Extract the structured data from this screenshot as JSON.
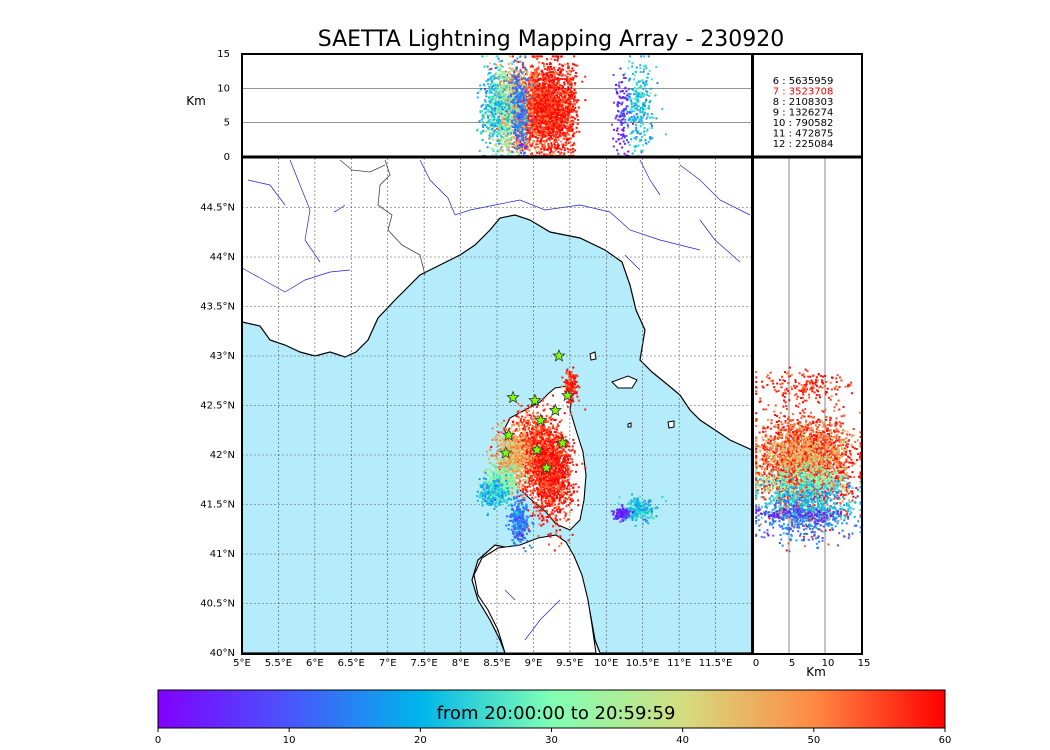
{
  "chart_data": {
    "type": "scatter",
    "title": "SAETTA Lightning Mapping Array - 230920",
    "colorbar": {
      "label": "from 20:00:00 to 20:59:59",
      "range": [
        0,
        60
      ],
      "ticks": [
        "0",
        "10",
        "20",
        "30",
        "40",
        "50",
        "60"
      ],
      "colormap": "rainbow"
    },
    "map_panel": {
      "lon_range": [
        5.0,
        12.0
      ],
      "lat_range": [
        40.0,
        45.0
      ],
      "lon_ticks": [
        "5°E",
        "5.5°E",
        "6°E",
        "6.5°E",
        "7°E",
        "7.5°E",
        "8°E",
        "8.5°E",
        "9°E",
        "9.5°E",
        "10°E",
        "10.5°E",
        "11°E",
        "11.5°E"
      ],
      "lat_ticks": [
        "40°N",
        "40.5°N",
        "41°N",
        "41.5°N",
        "42°N",
        "42.5°N",
        "43°N",
        "43.5°N",
        "44°N",
        "44.5°N"
      ],
      "grid": true,
      "sea_color": "#b5ecfb",
      "stations": [
        [
          9.35,
          43.0
        ],
        [
          8.72,
          42.58
        ],
        [
          9.02,
          42.55
        ],
        [
          9.47,
          42.6
        ],
        [
          9.1,
          42.35
        ],
        [
          9.3,
          42.45
        ],
        [
          8.66,
          42.2
        ],
        [
          9.05,
          42.05
        ],
        [
          9.4,
          42.12
        ],
        [
          8.62,
          42.02
        ],
        [
          9.18,
          41.87
        ]
      ],
      "sources": [
        {
          "lon": 9.0,
          "lat": 42.05,
          "spread_lon": 0.35,
          "spread_lat": 0.35,
          "time": 55
        },
        {
          "lon": 9.25,
          "lat": 41.8,
          "spread_lon": 0.25,
          "spread_lat": 0.4,
          "time": 58
        },
        {
          "lon": 8.7,
          "lat": 42.0,
          "spread_lon": 0.2,
          "spread_lat": 0.25,
          "time": 45
        },
        {
          "lon": 8.55,
          "lat": 41.75,
          "spread_lon": 0.2,
          "spread_lat": 0.15,
          "time": 32
        },
        {
          "lon": 8.45,
          "lat": 41.62,
          "spread_lon": 0.18,
          "spread_lat": 0.12,
          "time": 22
        },
        {
          "lon": 8.8,
          "lat": 41.35,
          "spread_lon": 0.12,
          "spread_lat": 0.2,
          "time": 14
        },
        {
          "lon": 9.5,
          "lat": 42.7,
          "spread_lon": 0.08,
          "spread_lat": 0.15,
          "time": 57
        },
        {
          "lon": 10.45,
          "lat": 41.45,
          "spread_lon": 0.2,
          "spread_lat": 0.1,
          "time": 22
        },
        {
          "lon": 10.2,
          "lat": 41.42,
          "spread_lon": 0.1,
          "spread_lat": 0.05,
          "time": 5
        }
      ]
    },
    "alt_lon_panel": {
      "ylabel": "Km",
      "ylim": [
        0,
        15
      ],
      "y_ticks": [
        "0",
        "5",
        "10",
        "15"
      ],
      "grid_y": [
        5,
        10
      ]
    },
    "lat_alt_panel": {
      "xlabel": "Km",
      "xlim": [
        0,
        15
      ],
      "x_ticks": [
        "0",
        "5",
        "10",
        "15"
      ],
      "grid_x": [
        5,
        10
      ]
    },
    "counts": [
      {
        "label": "6 :  5635959",
        "highlight": false
      },
      {
        "label": "7 :  3523708",
        "highlight": true
      },
      {
        "label": "8 :  2108303",
        "highlight": false
      },
      {
        "label": "9 :  1326274",
        "highlight": false
      },
      {
        "label": "10 :   790582",
        "highlight": false
      },
      {
        "label": "11 :   472875",
        "highlight": false
      },
      {
        "label": "12 :   225084",
        "highlight": false
      }
    ],
    "highlight_color": "#ff0000"
  }
}
